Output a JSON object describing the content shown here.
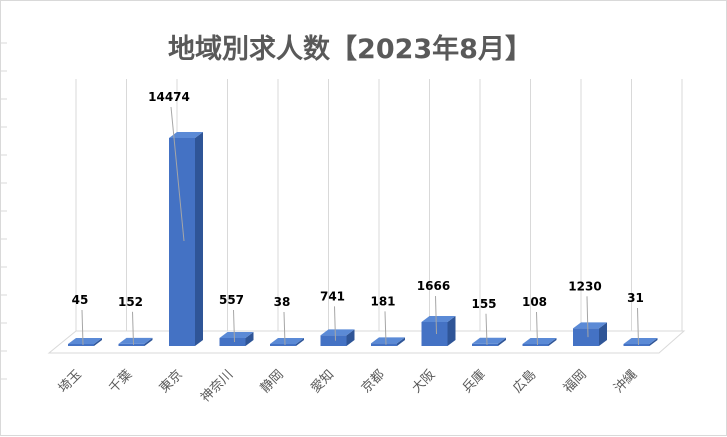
{
  "chart_data": {
    "type": "bar",
    "title": "地域別求人数【2023年8月】",
    "categories": [
      "埼玉",
      "千葉",
      "東京",
      "神奈川",
      "静岡",
      "愛知",
      "京都",
      "大阪",
      "兵庫",
      "広島",
      "福岡",
      "沖縄"
    ],
    "values": [
      45,
      152,
      14474,
      557,
      38,
      741,
      181,
      1666,
      155,
      108,
      1230,
      31
    ],
    "value_labels": [
      "45",
      "152",
      "14474",
      "557",
      "38",
      "741",
      "181",
      "1666",
      "155",
      "108",
      "1230",
      "31"
    ],
    "ylim": [
      0,
      16000
    ],
    "grid": true,
    "legend": "none",
    "colors": {
      "bar_front": "#4472c4",
      "bar_top": "#5b8ad6",
      "bar_side": "#2f5597",
      "gridline": "#d9d9d9",
      "leader": "#a6a6a6"
    }
  }
}
